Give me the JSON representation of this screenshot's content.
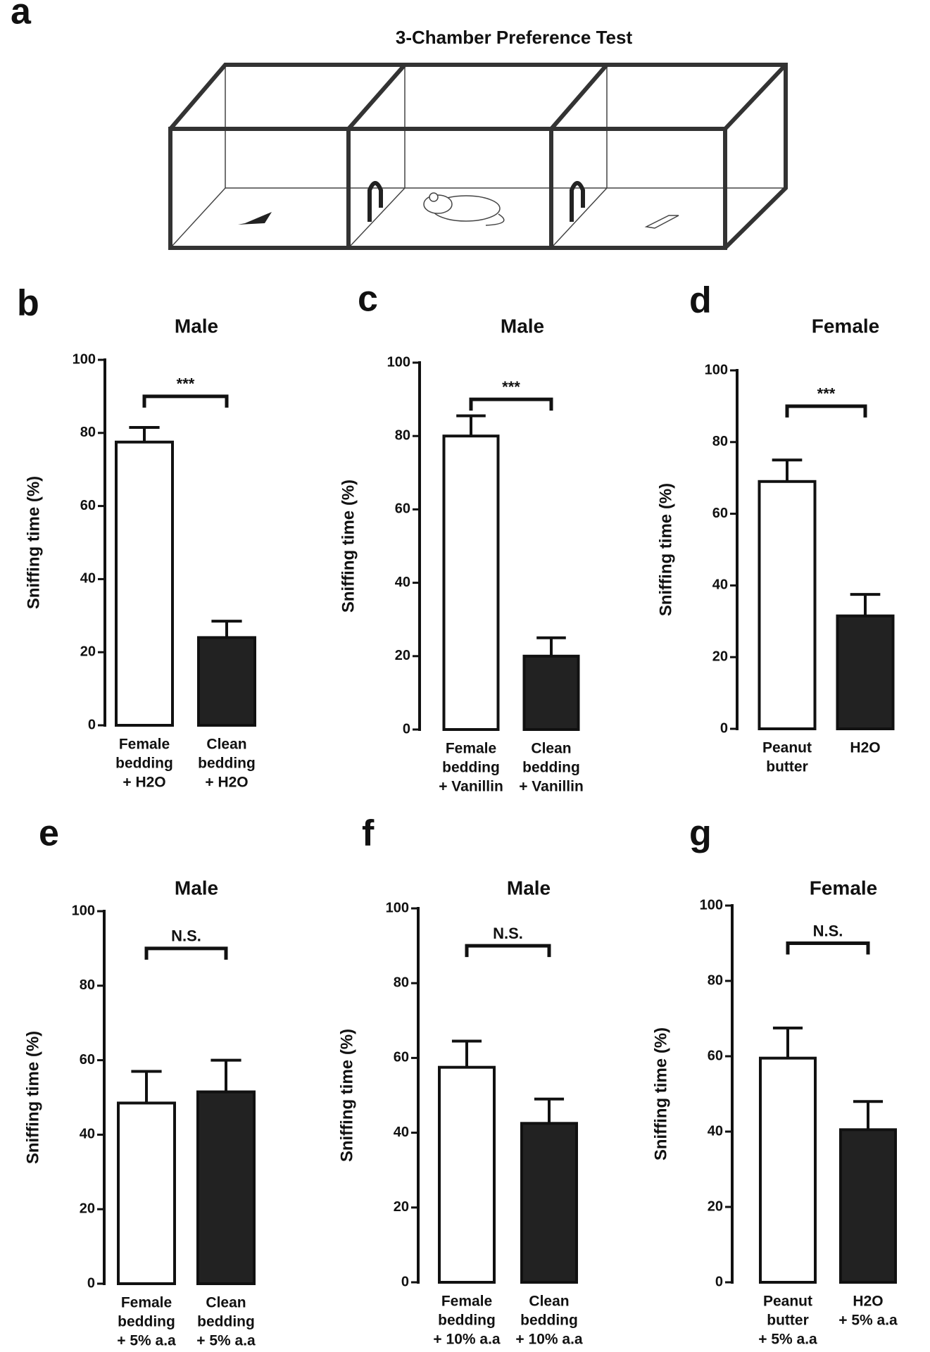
{
  "panel_a": {
    "letter": "a",
    "title": "3-Chamber Preference Test"
  },
  "chart_data": [
    {
      "type": "bar",
      "panel": "b",
      "title": "Male",
      "ylabel": "Sniffing time (%)",
      "categories": [
        [
          "Female",
          "bedding",
          "+ H2O"
        ],
        [
          "Clean",
          "bedding",
          "+ H2O"
        ]
      ],
      "values": [
        77.5,
        24
      ],
      "errors": [
        4,
        4.5
      ],
      "colors": [
        "#ffffff",
        "#222222"
      ],
      "annotation": "***",
      "ylim": [
        0,
        100
      ],
      "yticks": [
        0,
        20,
        40,
        60,
        80,
        100
      ]
    },
    {
      "type": "bar",
      "panel": "c",
      "title": "Male",
      "ylabel": "Sniffing time (%)",
      "categories": [
        [
          "Female",
          "bedding",
          "+ Vanillin"
        ],
        [
          "Clean",
          "bedding",
          "+ Vanillin"
        ]
      ],
      "values": [
        80,
        20
      ],
      "errors": [
        5.5,
        5
      ],
      "colors": [
        "#ffffff",
        "#222222"
      ],
      "annotation": "***",
      "ylim": [
        0,
        100
      ],
      "yticks": [
        0,
        20,
        40,
        60,
        80,
        100
      ]
    },
    {
      "type": "bar",
      "panel": "d",
      "title": "Female",
      "ylabel": "Sniffing time (%)",
      "categories": [
        [
          "Peanut",
          "butter"
        ],
        [
          "H2O"
        ]
      ],
      "values": [
        69,
        31.5
      ],
      "errors": [
        6,
        6
      ],
      "colors": [
        "#ffffff",
        "#222222"
      ],
      "annotation": "***",
      "ylim": [
        0,
        100
      ],
      "yticks": [
        0,
        20,
        40,
        60,
        80,
        100
      ]
    },
    {
      "type": "bar",
      "panel": "e",
      "title": "Male",
      "ylabel": "Sniffing time (%)",
      "categories": [
        [
          "Female",
          "bedding",
          "+ 5%  a.a"
        ],
        [
          "Clean",
          "bedding",
          "+ 5%  a.a"
        ]
      ],
      "values": [
        48.5,
        51.5
      ],
      "errors": [
        8.5,
        8.5
      ],
      "colors": [
        "#ffffff",
        "#222222"
      ],
      "annotation": "N.S.",
      "ylim": [
        0,
        100
      ],
      "yticks": [
        0,
        20,
        40,
        60,
        80,
        100
      ]
    },
    {
      "type": "bar",
      "panel": "f",
      "title": "Male",
      "ylabel": "Sniffing time (%)",
      "categories": [
        [
          "Female",
          "bedding",
          "+ 10%  a.a"
        ],
        [
          "Clean",
          "bedding",
          "+ 10%  a.a"
        ]
      ],
      "values": [
        57.5,
        42.5
      ],
      "errors": [
        7,
        6.5
      ],
      "colors": [
        "#ffffff",
        "#222222"
      ],
      "annotation": "N.S.",
      "ylim": [
        0,
        100
      ],
      "yticks": [
        0,
        20,
        40,
        60,
        80,
        100
      ]
    },
    {
      "type": "bar",
      "panel": "g",
      "title": "Female",
      "ylabel": "Sniffing time (%)",
      "categories": [
        [
          "Peanut",
          "butter",
          "+ 5%  a.a"
        ],
        [
          "H2O",
          "+ 5%  a.a"
        ]
      ],
      "values": [
        59.5,
        40.5
      ],
      "errors": [
        8,
        7.5
      ],
      "colors": [
        "#ffffff",
        "#222222"
      ],
      "annotation": "N.S.",
      "ylim": [
        0,
        100
      ],
      "yticks": [
        0,
        20,
        40,
        60,
        80,
        100
      ]
    }
  ]
}
